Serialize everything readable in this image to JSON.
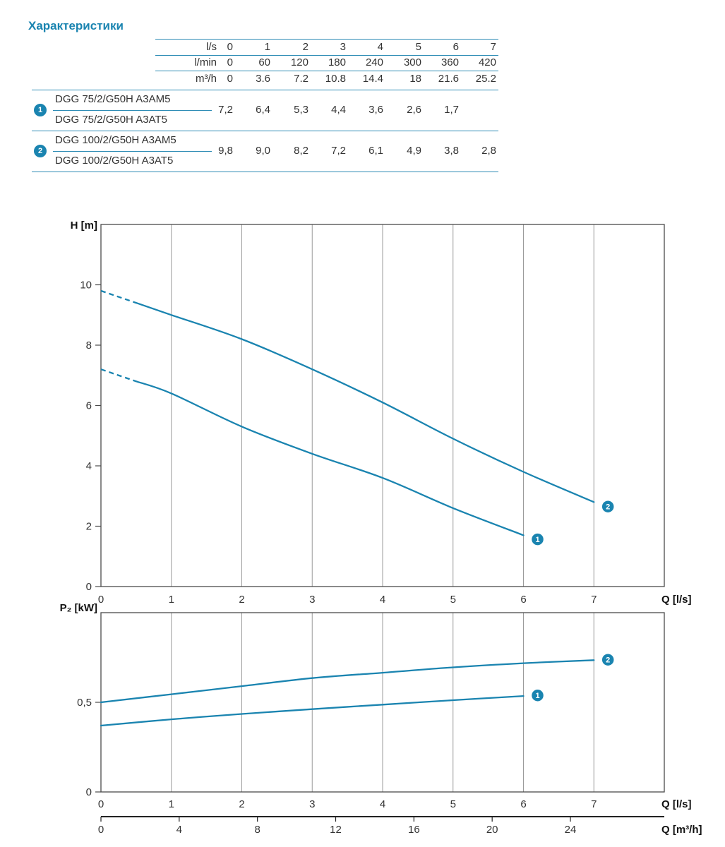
{
  "title": "Характеристики",
  "accent": "#1a84b0",
  "line_color": "#2e8cb5",
  "text_color": "#333333",
  "table": {
    "unit_rows": [
      {
        "unit": "l/s",
        "values": [
          "0",
          "1",
          "2",
          "3",
          "4",
          "5",
          "6",
          "7"
        ]
      },
      {
        "unit": "l/min",
        "values": [
          "0",
          "60",
          "120",
          "180",
          "240",
          "300",
          "360",
          "420"
        ]
      },
      {
        "unit": "m³/h",
        "values": [
          "0",
          "3.6",
          "7.2",
          "10.8",
          "14.4",
          "18",
          "21.6",
          "25.2"
        ]
      }
    ],
    "groups": [
      {
        "badge": "1",
        "models": [
          "DGG 75/2/G50H A3AM5",
          "DGG 75/2/G50H A3AT5"
        ],
        "values": [
          "7,2",
          "6,4",
          "5,3",
          "4,4",
          "3,6",
          "2,6",
          "1,7",
          ""
        ]
      },
      {
        "badge": "2",
        "models": [
          "DGG 100/2/G50H A3AM5",
          "DGG 100/2/G50H A3AT5"
        ],
        "values": [
          "9,8",
          "9,0",
          "8,2",
          "7,2",
          "6,1",
          "4,9",
          "3,8",
          "2,8"
        ]
      }
    ]
  },
  "chart_data": [
    {
      "type": "line",
      "title": "Head curves",
      "ylabel": "H [m]",
      "xlabel": "Q [l/s]",
      "xlim": [
        0,
        8
      ],
      "ylim": [
        0,
        12
      ],
      "xticks": [
        0,
        1,
        2,
        3,
        4,
        5,
        6,
        7
      ],
      "yticks": [
        0,
        2,
        4,
        6,
        8,
        10
      ],
      "grid": "vertical",
      "series": [
        {
          "name": "1",
          "marker_label": "1",
          "dash_until_x": 0.5,
          "x": [
            0,
            1,
            2,
            3,
            4,
            5,
            6
          ],
          "y": [
            7.2,
            6.4,
            5.3,
            4.4,
            3.6,
            2.6,
            1.7
          ]
        },
        {
          "name": "2",
          "marker_label": "2",
          "dash_until_x": 0.5,
          "x": [
            0,
            1,
            2,
            3,
            4,
            5,
            6,
            7
          ],
          "y": [
            9.8,
            9.0,
            8.2,
            7.2,
            6.1,
            4.9,
            3.8,
            2.8
          ]
        }
      ]
    },
    {
      "type": "line",
      "title": "Power curves",
      "ylabel": "P₂ [kW]",
      "xlabel": "Q [l/s]",
      "xlabel2": "Q [m³/h]",
      "xlim": [
        0,
        8
      ],
      "ylim": [
        0,
        1.0
      ],
      "xticks": [
        0,
        1,
        2,
        3,
        4,
        5,
        6,
        7
      ],
      "yticks": [
        0,
        0.5
      ],
      "ytick_labels": [
        "0",
        "0,5"
      ],
      "x2ticks": [
        0,
        4,
        8,
        12,
        16,
        20,
        24
      ],
      "x2_per_x": 3.6,
      "grid": "vertical",
      "series": [
        {
          "name": "1",
          "marker_label": "1",
          "x": [
            0,
            1,
            2,
            3,
            4,
            5,
            6
          ],
          "y": [
            0.37,
            0.405,
            0.435,
            0.462,
            0.487,
            0.512,
            0.535
          ]
        },
        {
          "name": "2",
          "marker_label": "2",
          "x": [
            0,
            1,
            2,
            3,
            4,
            5,
            6,
            7
          ],
          "y": [
            0.5,
            0.545,
            0.59,
            0.635,
            0.665,
            0.695,
            0.718,
            0.735
          ]
        }
      ]
    }
  ]
}
